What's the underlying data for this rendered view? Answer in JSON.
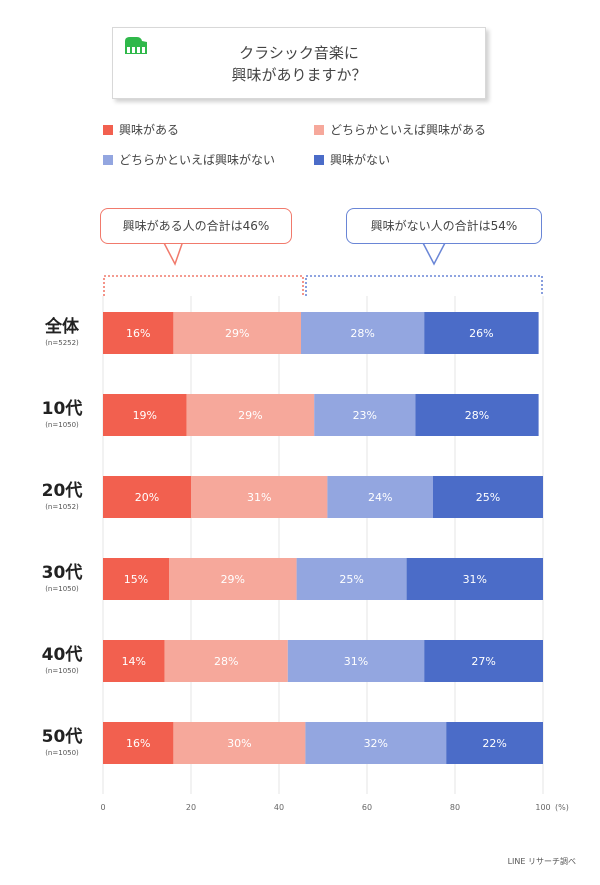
{
  "title": {
    "line1": "クラシック音楽に",
    "line2": "興味がありますか？"
  },
  "icons": {
    "title_icon": "piano-icon"
  },
  "legend": [
    {
      "label": "興味がある",
      "color": "#f2604f"
    },
    {
      "label": "どちらかといえば興味がある",
      "color": "#f6a89b"
    },
    {
      "label": "どちらかといえば興味がない",
      "color": "#93a6e0"
    },
    {
      "label": "興味がない",
      "color": "#4b6cc8"
    }
  ],
  "callouts": {
    "interested": {
      "text": "興味がある人の合計は46%",
      "color": "#f17a6c"
    },
    "not_interested": {
      "text": "興味がない人の合計は54%",
      "color": "#6a86d6"
    }
  },
  "rows": [
    {
      "label": "全体",
      "sub": "(n=5252)"
    },
    {
      "label": "10代",
      "sub": "(n=1050)"
    },
    {
      "label": "20代",
      "sub": "(n=1052)"
    },
    {
      "label": "30代",
      "sub": "(n=1050)"
    },
    {
      "label": "40代",
      "sub": "(n=1050)"
    },
    {
      "label": "50代",
      "sub": "(n=1050)"
    }
  ],
  "footer": "LINE リサーチ調べ",
  "chart_data": {
    "type": "bar",
    "orientation": "horizontal",
    "stacked": true,
    "categories": [
      "全体",
      "10代",
      "20代",
      "30代",
      "40代",
      "50代"
    ],
    "series": [
      {
        "name": "興味がある",
        "values": [
          16,
          19,
          20,
          15,
          14,
          16
        ],
        "labels": [
          "16%",
          "19%",
          "20%",
          "15%",
          "14%",
          "16%"
        ]
      },
      {
        "name": "どちらかといえば興味がある",
        "values": [
          29,
          29,
          31,
          29,
          28,
          30
        ],
        "labels": [
          "29%",
          "29%",
          "31%",
          "29%",
          "28%",
          "30%"
        ]
      },
      {
        "name": "どちらかといえば興味がない",
        "values": [
          28,
          23,
          24,
          25,
          31,
          32
        ],
        "labels": [
          "28%",
          "23%",
          "24%",
          "25%",
          "31%",
          "32%"
        ]
      },
      {
        "name": "興味がない",
        "values": [
          26,
          28,
          25,
          31,
          27,
          22
        ],
        "labels": [
          "26%",
          "28%",
          "25%",
          "31%",
          "27%",
          "22%"
        ]
      }
    ],
    "xlim": [
      0,
      100
    ],
    "xticks": [
      "0",
      "20",
      "40",
      "60",
      "80",
      "100"
    ],
    "xunit": "(%)",
    "grid": true,
    "legend_position": "top"
  }
}
